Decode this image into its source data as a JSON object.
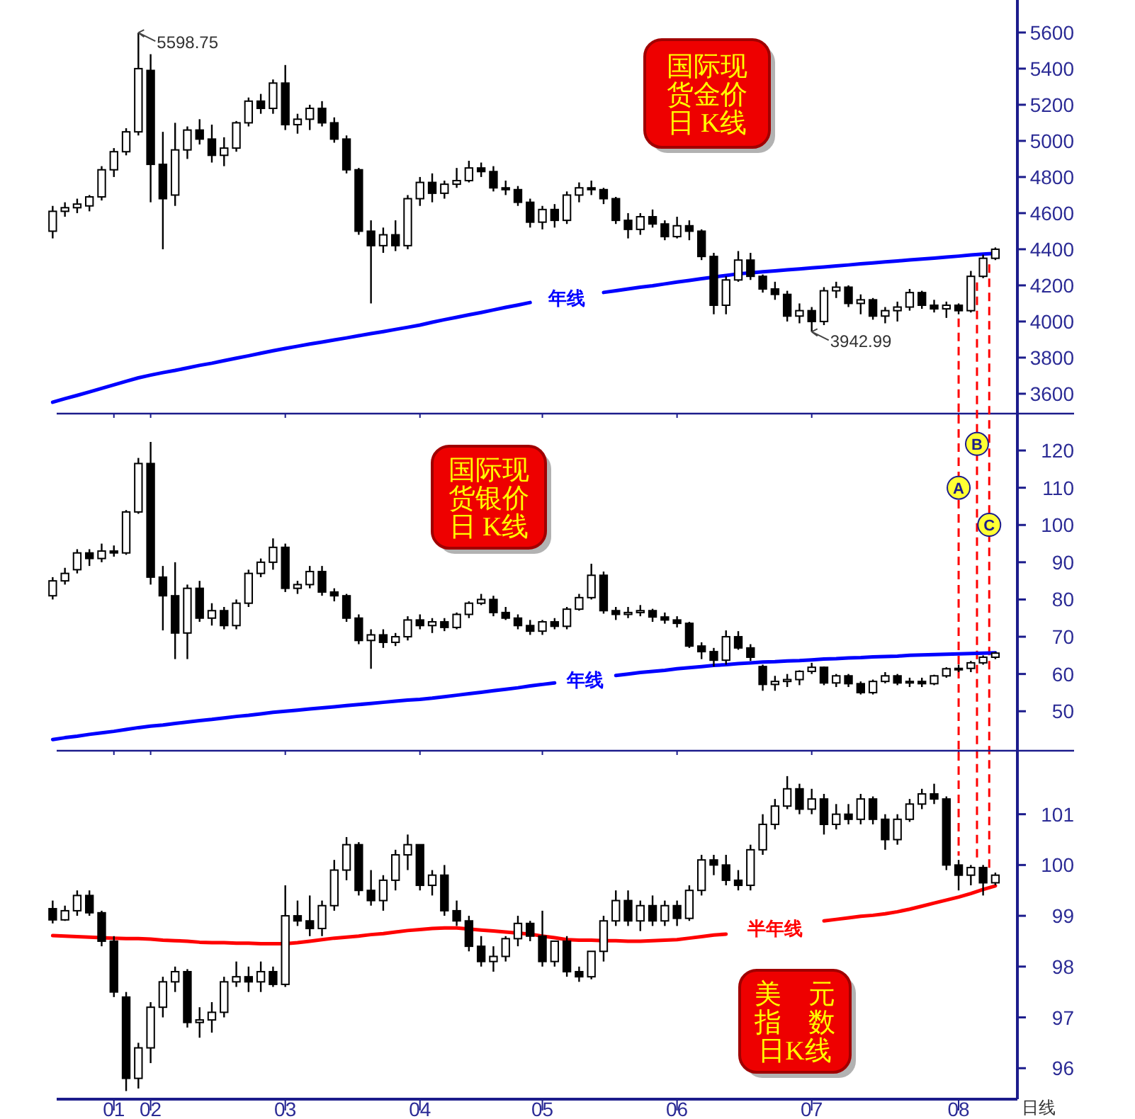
{
  "chart_data": [
    {
      "type": "candlestick",
      "title": "国际现货金价日 K线",
      "tick_labels": "y",
      "categories": [
        null,
        null,
        null,
        null,
        null,
        "01",
        null,
        null,
        "02",
        null,
        null,
        null,
        null,
        null,
        null,
        null,
        null,
        null,
        null,
        "03",
        null,
        null,
        null,
        null,
        null,
        null,
        null,
        null,
        null,
        null,
        "04",
        null,
        null,
        null,
        null,
        null,
        null,
        null,
        null,
        null,
        "05",
        null,
        null,
        null,
        null,
        null,
        null,
        null,
        null,
        null,
        null,
        "06",
        null,
        null,
        null,
        null,
        null,
        null,
        null,
        null,
        null,
        null,
        "07",
        null,
        null,
        null,
        null,
        null,
        null,
        null,
        null,
        null,
        null,
        null,
        "08",
        null,
        null,
        null
      ],
      "ylim": [
        3490,
        5780
      ],
      "yticks": [
        3600,
        3800,
        4000,
        4200,
        4400,
        4600,
        4800,
        5000,
        5200,
        5400,
        5600
      ],
      "ohlc": [
        [
          4500,
          4640,
          4460,
          4610
        ],
        [
          4610,
          4660,
          4580,
          4630
        ],
        [
          4630,
          4680,
          4600,
          4650
        ],
        [
          4640,
          4700,
          4610,
          4690
        ],
        [
          4690,
          4860,
          4670,
          4840
        ],
        [
          4840,
          4960,
          4800,
          4940
        ],
        [
          4940,
          5070,
          4920,
          5050
        ],
        [
          5050,
          5598.75,
          5030,
          5400
        ],
        [
          5390,
          5480,
          4660,
          4870
        ],
        [
          4870,
          5050,
          4400,
          4680
        ],
        [
          4700,
          5100,
          4640,
          4950
        ],
        [
          4950,
          5080,
          4900,
          5060
        ],
        [
          5060,
          5120,
          4980,
          5010
        ],
        [
          5010,
          5090,
          4880,
          4920
        ],
        [
          4920,
          5020,
          4860,
          4960
        ],
        [
          4960,
          5110,
          4940,
          5100
        ],
        [
          5100,
          5240,
          5080,
          5220
        ],
        [
          5220,
          5260,
          5150,
          5180
        ],
        [
          5180,
          5340,
          5150,
          5320
        ],
        [
          5320,
          5420,
          5060,
          5090
        ],
        [
          5090,
          5150,
          5040,
          5120
        ],
        [
          5120,
          5200,
          5060,
          5180
        ],
        [
          5180,
          5220,
          5080,
          5100
        ],
        [
          5100,
          5130,
          4990,
          5010
        ],
        [
          5010,
          5030,
          4820,
          4840
        ],
        [
          4840,
          4850,
          4480,
          4500
        ],
        [
          4500,
          4560,
          4100,
          4420
        ],
        [
          4420,
          4520,
          4380,
          4480
        ],
        [
          4480,
          4560,
          4390,
          4420
        ],
        [
          4420,
          4700,
          4400,
          4680
        ],
        [
          4680,
          4800,
          4640,
          4770
        ],
        [
          4770,
          4820,
          4660,
          4710
        ],
        [
          4710,
          4780,
          4680,
          4760
        ],
        [
          4760,
          4850,
          4740,
          4780
        ],
        [
          4780,
          4890,
          4770,
          4850
        ],
        [
          4850,
          4880,
          4800,
          4830
        ],
        [
          4830,
          4860,
          4720,
          4740
        ],
        [
          4740,
          4780,
          4700,
          4730
        ],
        [
          4730,
          4750,
          4640,
          4660
        ],
        [
          4660,
          4680,
          4520,
          4550
        ],
        [
          4550,
          4640,
          4510,
          4620
        ],
        [
          4620,
          4650,
          4520,
          4560
        ],
        [
          4560,
          4720,
          4540,
          4700
        ],
        [
          4700,
          4770,
          4660,
          4740
        ],
        [
          4740,
          4780,
          4700,
          4730
        ],
        [
          4730,
          4740,
          4650,
          4680
        ],
        [
          4680,
          4690,
          4540,
          4560
        ],
        [
          4560,
          4600,
          4460,
          4510
        ],
        [
          4510,
          4600,
          4480,
          4580
        ],
        [
          4580,
          4620,
          4520,
          4540
        ],
        [
          4540,
          4560,
          4450,
          4470
        ],
        [
          4470,
          4580,
          4460,
          4530
        ],
        [
          4530,
          4560,
          4450,
          4500
        ],
        [
          4500,
          4510,
          4340,
          4360
        ],
        [
          4360,
          4380,
          4040,
          4090
        ],
        [
          4090,
          4250,
          4040,
          4230
        ],
        [
          4230,
          4390,
          4220,
          4340
        ],
        [
          4340,
          4380,
          4230,
          4250
        ],
        [
          4250,
          4260,
          4160,
          4180
        ],
        [
          4180,
          4220,
          4120,
          4150
        ],
        [
          4150,
          4170,
          4000,
          4030
        ],
        [
          4030,
          4100,
          3990,
          4060
        ],
        [
          4060,
          4080,
          3942.99,
          4000
        ],
        [
          4000,
          4190,
          3980,
          4170
        ],
        [
          4170,
          4220,
          4130,
          4190
        ],
        [
          4190,
          4200,
          4080,
          4100
        ],
        [
          4100,
          4150,
          4040,
          4120
        ],
        [
          4120,
          4130,
          4010,
          4030
        ],
        [
          4030,
          4080,
          3990,
          4060
        ],
        [
          4060,
          4110,
          4000,
          4080
        ],
        [
          4080,
          4180,
          4060,
          4160
        ],
        [
          4160,
          4170,
          4070,
          4090
        ],
        [
          4090,
          4120,
          4050,
          4070
        ],
        [
          4070,
          4110,
          4020,
          4090
        ],
        [
          4090,
          4100,
          4040,
          4060
        ],
        [
          4060,
          4280,
          4050,
          4250
        ],
        [
          4250,
          4370,
          4240,
          4350
        ],
        [
          4350,
          4410,
          4340,
          4400
        ]
      ],
      "series": [
        {
          "name": "年线",
          "type": "line",
          "color": "#0000ff",
          "values": [
            3553,
            3573,
            3591,
            3610,
            3630,
            3649,
            3669,
            3688,
            3703,
            3717,
            3729,
            3743,
            3757,
            3769,
            3783,
            3797,
            3810,
            3824,
            3838,
            3851,
            3863,
            3875,
            3886,
            3898,
            3909,
            3921,
            3933,
            3944,
            3956,
            3968,
            3980,
            3996,
            4010,
            4023,
            4037,
            4050,
            4064,
            4078,
            4091,
            4105,
            null,
            null,
            null,
            null,
            null,
            4161,
            4170,
            4180,
            4190,
            4198,
            4208,
            4218,
            4227,
            4237,
            4246,
            4255,
            4264,
            4269,
            4275,
            4280,
            4286,
            4291,
            4297,
            4302,
            4308,
            4313,
            4319,
            4324,
            4330,
            4335,
            4341,
            4346,
            4351,
            4357,
            4362,
            4368,
            4373,
            4377
          ]
        }
      ],
      "annotations": [
        "5598.75",
        "3942.99"
      ],
      "ref_lines": [
        {
          "axis": "x",
          "value": "08",
          "color": "#ff0000",
          "line_style": "dashed"
        }
      ]
    },
    {
      "type": "candlestick",
      "title": "国际现货银价日 K线",
      "tick_labels": "y",
      "categories": [
        null,
        null,
        null,
        null,
        null,
        "01",
        null,
        null,
        "02",
        null,
        null,
        null,
        null,
        null,
        null,
        null,
        null,
        null,
        null,
        "03",
        null,
        null,
        null,
        null,
        null,
        null,
        null,
        null,
        null,
        null,
        "04",
        null,
        null,
        null,
        null,
        null,
        null,
        null,
        null,
        null,
        "05",
        null,
        null,
        null,
        null,
        null,
        null,
        null,
        null,
        null,
        null,
        "06",
        null,
        null,
        null,
        null,
        null,
        null,
        null,
        null,
        null,
        null,
        "07",
        null,
        null,
        null,
        null,
        null,
        null,
        null,
        null,
        null,
        null,
        null,
        "08",
        null,
        null,
        null
      ],
      "ylim": [
        39.4,
        129.9
      ],
      "yticks": [
        50,
        60,
        70,
        80,
        90,
        100,
        110,
        120
      ],
      "ohlc": [
        [
          81.0,
          86.0,
          80.0,
          85.0
        ],
        [
          85.0,
          88.5,
          84.0,
          87.0
        ],
        [
          88.0,
          93.5,
          87.0,
          92.5
        ],
        [
          92.5,
          93.5,
          89.0,
          91.0
        ],
        [
          91.0,
          95.0,
          90.0,
          93.0
        ],
        [
          93.0,
          94.5,
          91.5,
          92.5
        ],
        [
          92.5,
          104.0,
          92.0,
          103.5
        ],
        [
          103.5,
          118.0,
          103.0,
          116.5
        ],
        [
          116.5,
          122.3,
          84.0,
          86.0
        ],
        [
          86.0,
          89.0,
          71.7,
          81.0
        ],
        [
          81.0,
          90.0,
          64.0,
          71.0
        ],
        [
          71.0,
          84.0,
          64.0,
          83.0
        ],
        [
          83.0,
          85.0,
          74.0,
          75.0
        ],
        [
          75.0,
          79.0,
          73.0,
          77.0
        ],
        [
          77.0,
          78.0,
          72.0,
          73.0
        ],
        [
          73.0,
          80.0,
          72.0,
          79.0
        ],
        [
          79.0,
          88.0,
          78.0,
          87.0
        ],
        [
          87.0,
          91.0,
          86.0,
          90.0
        ],
        [
          90.0,
          96.4,
          88.0,
          94.0
        ],
        [
          94.0,
          95.0,
          82.0,
          83.0
        ],
        [
          83.0,
          85.0,
          81.5,
          84.0
        ],
        [
          84.0,
          89.0,
          83.0,
          87.5
        ],
        [
          87.5,
          89.0,
          81.0,
          82.0
        ],
        [
          82.0,
          83.0,
          79.5,
          81.0
        ],
        [
          81.0,
          81.5,
          74.0,
          75.0
        ],
        [
          75.0,
          76.0,
          68.0,
          69.0
        ],
        [
          69.0,
          72.0,
          61.4,
          70.5
        ],
        [
          70.5,
          72.0,
          67.0,
          68.5
        ],
        [
          68.5,
          71.0,
          67.5,
          70.0
        ],
        [
          70.0,
          75.5,
          69.0,
          74.5
        ],
        [
          74.5,
          76.0,
          72.0,
          73.0
        ],
        [
          73.0,
          75.0,
          71.0,
          74.0
        ],
        [
          74.0,
          75.0,
          71.5,
          72.5
        ],
        [
          72.5,
          76.5,
          72.0,
          76.0
        ],
        [
          76.0,
          79.5,
          75.0,
          79.0
        ],
        [
          79.0,
          81.5,
          78.5,
          80.0
        ],
        [
          80.0,
          81.0,
          75.5,
          76.5
        ],
        [
          76.5,
          78.0,
          74.5,
          75.0
        ],
        [
          75.0,
          76.0,
          72.0,
          73.0
        ],
        [
          73.0,
          74.5,
          70.5,
          71.5
        ],
        [
          71.5,
          74.5,
          70.5,
          74.0
        ],
        [
          74.0,
          75.0,
          72.0,
          72.8
        ],
        [
          72.8,
          78.0,
          72.0,
          77.4
        ],
        [
          77.4,
          81.5,
          77.0,
          80.5
        ],
        [
          80.5,
          89.6,
          80.0,
          86.5
        ],
        [
          86.5,
          87.5,
          76.2,
          77.0
        ],
        [
          77.0,
          78.0,
          74.5,
          76.0
        ],
        [
          76.0,
          78.0,
          75.0,
          76.5
        ],
        [
          76.5,
          78.5,
          75.5,
          77.0
        ],
        [
          77.0,
          77.5,
          74.0,
          75.3
        ],
        [
          75.3,
          76.5,
          73.5,
          74.5
        ],
        [
          74.5,
          75.5,
          72.5,
          73.6
        ],
        [
          73.6,
          74.0,
          67.0,
          67.5
        ],
        [
          67.5,
          68.5,
          64.0,
          66.0
        ],
        [
          66.0,
          67.0,
          62.0,
          63.7
        ],
        [
          63.7,
          71.7,
          62.5,
          70.0
        ],
        [
          70.0,
          71.5,
          66.5,
          67.0
        ],
        [
          67.0,
          68.0,
          63.5,
          64.5
        ],
        [
          62.0,
          62.5,
          55.5,
          57.2
        ],
        [
          57.2,
          59.5,
          55.5,
          58.0
        ],
        [
          58.0,
          60.0,
          56.5,
          58.5
        ],
        [
          58.5,
          61.0,
          57.0,
          60.7
        ],
        [
          60.7,
          63.0,
          60.0,
          61.8
        ],
        [
          61.8,
          62.0,
          57.0,
          57.6
        ],
        [
          57.6,
          60.0,
          56.5,
          59.5
        ],
        [
          59.5,
          60.0,
          56.5,
          57.4
        ],
        [
          57.4,
          58.0,
          54.5,
          55.0
        ],
        [
          55.0,
          58.5,
          54.5,
          58.0
        ],
        [
          58.0,
          60.5,
          57.5,
          59.5
        ],
        [
          59.5,
          60.0,
          57.0,
          57.6
        ],
        [
          57.6,
          59.0,
          56.5,
          58.0
        ],
        [
          58.0,
          59.0,
          56.5,
          57.4
        ],
        [
          57.4,
          59.8,
          57.0,
          59.5
        ],
        [
          59.5,
          61.8,
          59.0,
          61.4
        ],
        [
          61.4,
          62.5,
          60.5,
          61.5
        ],
        [
          61.5,
          63.5,
          60.5,
          63.0
        ],
        [
          63.0,
          65.0,
          62.5,
          64.5
        ],
        [
          64.5,
          66.0,
          64.0,
          65.6
        ]
      ],
      "series": [
        {
          "name": "年线",
          "type": "line",
          "color": "#0000ff",
          "values": [
            42.4,
            42.9,
            43.3,
            43.8,
            44.2,
            44.6,
            45.1,
            45.6,
            46.0,
            46.3,
            46.7,
            47.1,
            47.5,
            47.8,
            48.2,
            48.6,
            48.9,
            49.3,
            49.7,
            50.0,
            50.3,
            50.6,
            50.9,
            51.2,
            51.5,
            51.8,
            52.1,
            52.4,
            52.7,
            53.0,
            53.2,
            53.5,
            53.9,
            54.3,
            54.7,
            55.1,
            55.5,
            55.9,
            56.3,
            56.8,
            57.2,
            57.6,
            null,
            null,
            null,
            null,
            59.6,
            60.0,
            60.4,
            60.7,
            61.0,
            61.4,
            61.7,
            62.0,
            62.3,
            62.5,
            62.8,
            63.0,
            63.2,
            63.3,
            63.5,
            63.6,
            63.8,
            64.0,
            64.1,
            64.3,
            64.4,
            64.6,
            64.7,
            64.8,
            65.0,
            65.1,
            65.2,
            65.3,
            65.4,
            65.5,
            65.6,
            65.7
          ]
        }
      ],
      "annotations": [
        "B",
        "C"
      ],
      "ref_lines": [
        {
          "axis": "x",
          "value": "08",
          "label": "A",
          "color": "#ff0000",
          "line_style": "dashed"
        }
      ]
    },
    {
      "type": "candlestick",
      "title": "美　元指　数日K线",
      "categories": [
        null,
        null,
        null,
        null,
        null,
        "01",
        null,
        null,
        "02",
        null,
        null,
        null,
        null,
        null,
        null,
        null,
        null,
        null,
        null,
        "03",
        null,
        null,
        null,
        null,
        null,
        null,
        null,
        null,
        null,
        null,
        "04",
        null,
        null,
        null,
        null,
        null,
        null,
        null,
        null,
        null,
        "05",
        null,
        null,
        null,
        null,
        null,
        null,
        null,
        null,
        null,
        null,
        "06",
        null,
        null,
        null,
        null,
        null,
        null,
        null,
        null,
        null,
        null,
        "07",
        null,
        null,
        null,
        null,
        null,
        null,
        null,
        null,
        null,
        null,
        null,
        "08",
        null,
        null,
        null
      ],
      "ylim": [
        95.39,
        102.25
      ],
      "yticks": [
        96,
        97,
        98,
        99,
        100,
        101
      ],
      "ohlc": [
        [
          99.14,
          99.3,
          98.85,
          98.92
        ],
        [
          98.92,
          99.2,
          98.9,
          99.1
        ],
        [
          99.1,
          99.5,
          99.0,
          99.4
        ],
        [
          99.4,
          99.5,
          99.0,
          99.06
        ],
        [
          99.06,
          99.1,
          98.4,
          98.5
        ],
        [
          98.5,
          98.6,
          97.4,
          97.5
        ],
        [
          97.4,
          97.5,
          95.55,
          95.8
        ],
        [
          95.8,
          96.5,
          95.6,
          96.4
        ],
        [
          96.4,
          97.3,
          96.1,
          97.2
        ],
        [
          97.2,
          97.8,
          97.0,
          97.7
        ],
        [
          97.7,
          98.0,
          97.5,
          97.9
        ],
        [
          97.9,
          97.95,
          96.8,
          96.9
        ],
        [
          96.9,
          97.2,
          96.6,
          96.95
        ],
        [
          96.95,
          97.3,
          96.7,
          97.1
        ],
        [
          97.1,
          97.8,
          97.0,
          97.7
        ],
        [
          97.7,
          98.1,
          97.6,
          97.8
        ],
        [
          97.8,
          98.0,
          97.5,
          97.7
        ],
        [
          97.7,
          98.1,
          97.5,
          97.9
        ],
        [
          97.9,
          98.0,
          97.6,
          97.65
        ],
        [
          97.65,
          99.6,
          97.6,
          99.0
        ],
        [
          99.0,
          99.3,
          98.8,
          98.9
        ],
        [
          98.9,
          99.4,
          98.6,
          98.75
        ],
        [
          98.75,
          99.3,
          98.6,
          99.2
        ],
        [
          99.2,
          100.1,
          99.1,
          99.9
        ],
        [
          99.9,
          100.55,
          99.7,
          100.4
        ],
        [
          100.4,
          100.45,
          99.4,
          99.5
        ],
        [
          99.5,
          99.9,
          99.2,
          99.3
        ],
        [
          99.3,
          99.8,
          99.1,
          99.7
        ],
        [
          99.7,
          100.3,
          99.5,
          100.2
        ],
        [
          100.2,
          100.6,
          99.9,
          100.4
        ],
        [
          100.4,
          100.4,
          99.5,
          99.6
        ],
        [
          99.6,
          99.9,
          99.4,
          99.8
        ],
        [
          99.8,
          100.0,
          99.0,
          99.1
        ],
        [
          99.1,
          99.3,
          98.8,
          98.9
        ],
        [
          98.9,
          99.0,
          98.3,
          98.4
        ],
        [
          98.4,
          98.6,
          98.0,
          98.1
        ],
        [
          98.1,
          98.4,
          97.9,
          98.2
        ],
        [
          98.2,
          98.6,
          98.1,
          98.55
        ],
        [
          98.55,
          99.0,
          98.4,
          98.85
        ],
        [
          98.85,
          98.9,
          98.5,
          98.6
        ],
        [
          98.6,
          99.1,
          98.0,
          98.1
        ],
        [
          98.1,
          98.5,
          98.0,
          98.5
        ],
        [
          98.5,
          98.6,
          97.8,
          97.9
        ],
        [
          97.9,
          98.0,
          97.7,
          97.8
        ],
        [
          97.8,
          98.3,
          97.75,
          98.3
        ],
        [
          98.3,
          99.0,
          98.1,
          98.9
        ],
        [
          98.9,
          99.5,
          98.8,
          99.3
        ],
        [
          99.3,
          99.5,
          98.8,
          98.9
        ],
        [
          98.9,
          99.3,
          98.7,
          99.2
        ],
        [
          99.2,
          99.4,
          98.8,
          98.9
        ],
        [
          98.9,
          99.3,
          98.8,
          99.2
        ],
        [
          99.2,
          99.3,
          98.8,
          98.95
        ],
        [
          98.95,
          99.6,
          98.9,
          99.5
        ],
        [
          99.5,
          100.2,
          99.4,
          100.1
        ],
        [
          100.1,
          100.2,
          99.8,
          100.0
        ],
        [
          100.0,
          100.2,
          99.6,
          99.7
        ],
        [
          99.7,
          99.9,
          99.5,
          99.6
        ],
        [
          99.6,
          100.4,
          99.5,
          100.3
        ],
        [
          100.3,
          101.0,
          100.2,
          100.8
        ],
        [
          100.8,
          101.3,
          100.7,
          101.16
        ],
        [
          101.16,
          101.75,
          101.1,
          101.5
        ],
        [
          101.5,
          101.6,
          101.0,
          101.1
        ],
        [
          101.1,
          101.5,
          101.0,
          101.3
        ],
        [
          101.3,
          101.4,
          100.6,
          100.8
        ],
        [
          100.8,
          101.2,
          100.7,
          101.0
        ],
        [
          101.0,
          101.2,
          100.8,
          100.9
        ],
        [
          100.9,
          101.4,
          100.8,
          101.3
        ],
        [
          101.3,
          101.35,
          100.8,
          100.9
        ],
        [
          100.9,
          101.0,
          100.3,
          100.5
        ],
        [
          100.5,
          101.0,
          100.4,
          100.9
        ],
        [
          100.9,
          101.3,
          100.85,
          101.2
        ],
        [
          101.2,
          101.5,
          101.1,
          101.4
        ],
        [
          101.4,
          101.6,
          101.2,
          101.3
        ],
        [
          101.3,
          101.35,
          99.9,
          100.0
        ],
        [
          100.0,
          100.1,
          99.5,
          99.8
        ],
        [
          99.8,
          100.0,
          99.6,
          99.95
        ],
        [
          99.95,
          100.0,
          99.4,
          99.65
        ],
        [
          99.65,
          99.85,
          99.6,
          99.8
        ]
      ],
      "series": [
        {
          "name": "半年线",
          "type": "line",
          "color": "#ff0000",
          "values": [
            98.61,
            98.6,
            98.59,
            98.58,
            98.57,
            98.56,
            98.55,
            98.55,
            98.54,
            98.52,
            98.51,
            98.5,
            98.48,
            98.47,
            98.47,
            98.46,
            98.46,
            98.45,
            98.45,
            98.45,
            98.47,
            98.5,
            98.53,
            98.56,
            98.58,
            98.6,
            98.63,
            98.65,
            98.68,
            98.71,
            98.73,
            98.75,
            98.76,
            98.76,
            98.74,
            98.72,
            98.7,
            98.68,
            98.66,
            98.64,
            98.6,
            98.57,
            98.53,
            98.52,
            98.52,
            98.51,
            98.51,
            98.5,
            98.5,
            98.51,
            98.52,
            98.53,
            98.56,
            98.59,
            98.62,
            98.64,
            null,
            null,
            null,
            null,
            null,
            null,
            null,
            98.9,
            98.93,
            98.96,
            98.99,
            99.01,
            99.04,
            99.08,
            99.13,
            99.19,
            99.25,
            99.31,
            99.37,
            99.44,
            99.52,
            99.59
          ]
        }
      ],
      "annotations": [
        "日线"
      ],
      "ref_lines": [
        {
          "axis": "x",
          "value": "08",
          "color": "#ff0000",
          "line_style": "dashed"
        }
      ]
    }
  ]
}
